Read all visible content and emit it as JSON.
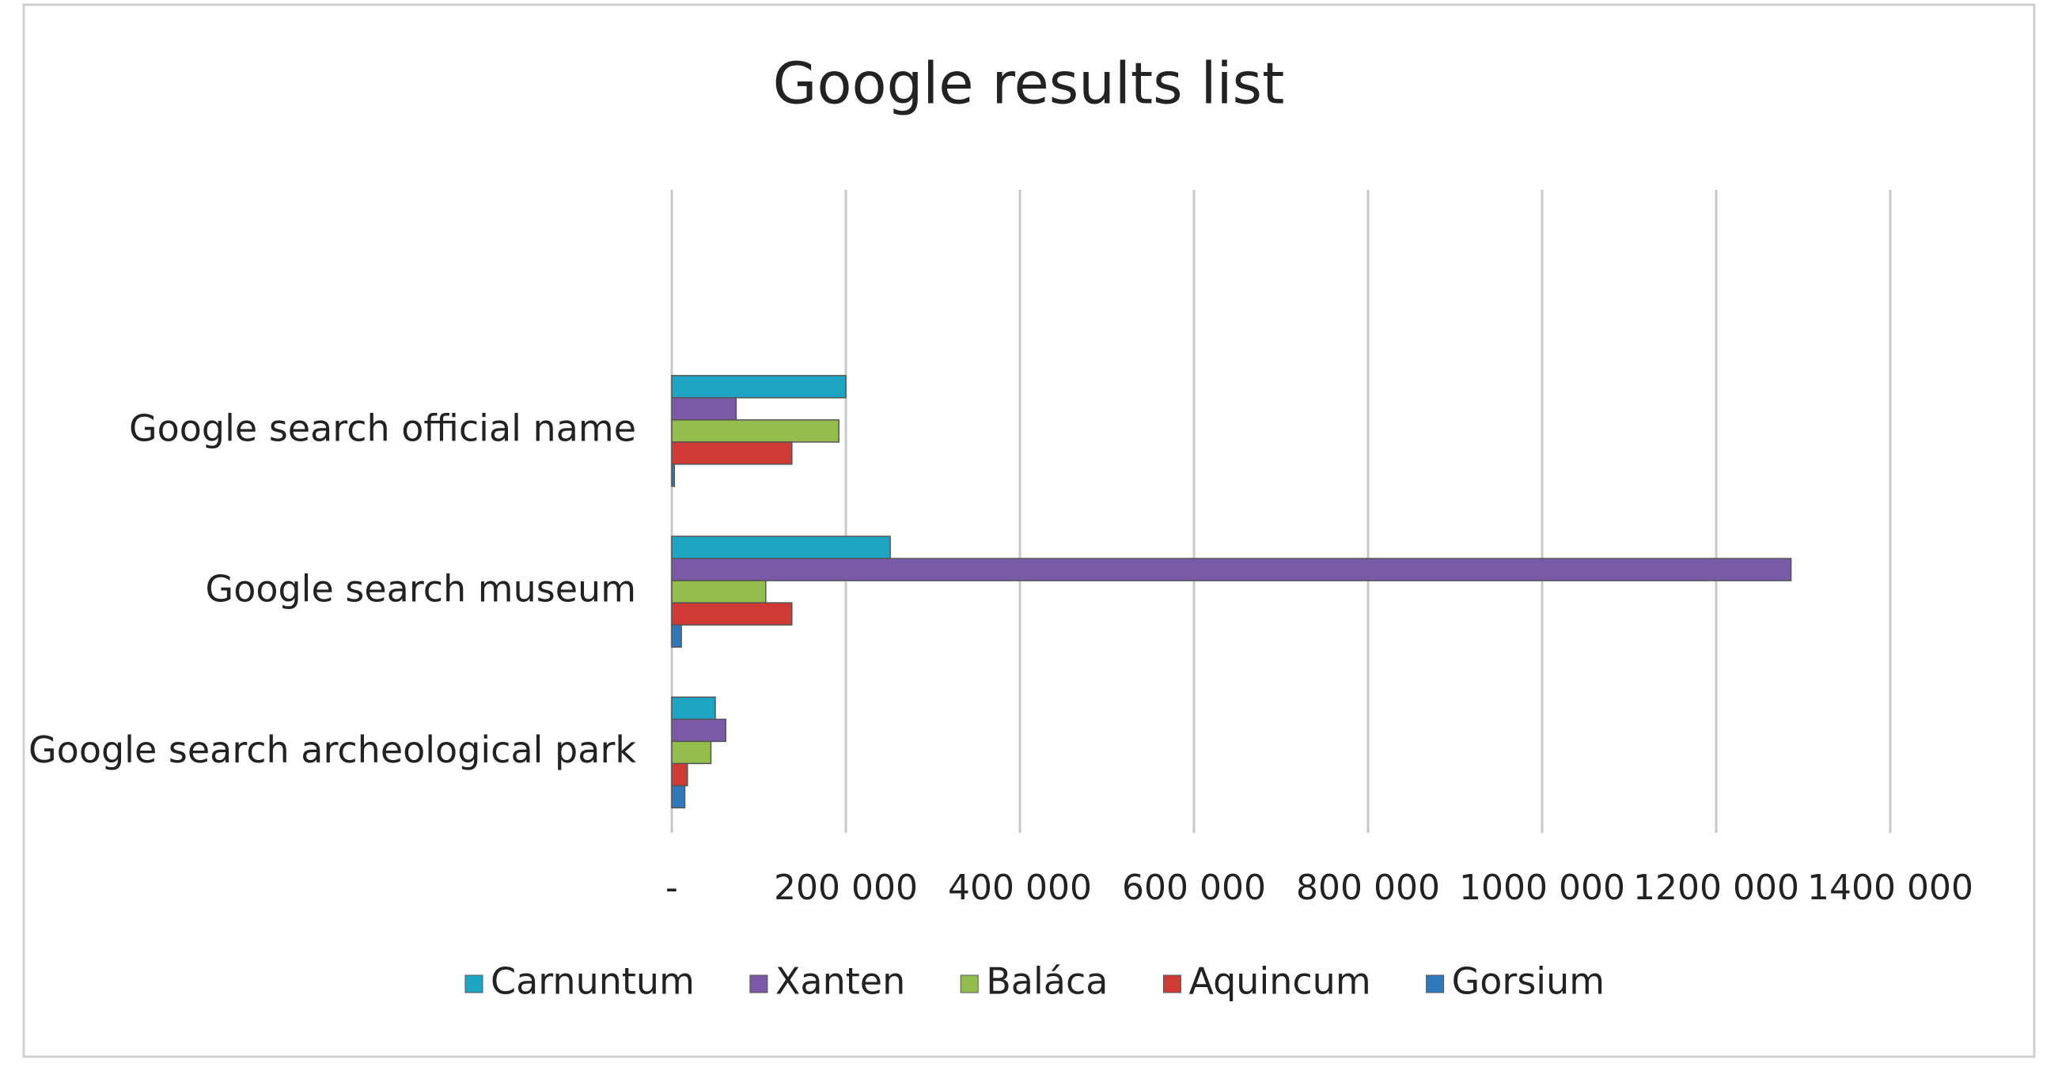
{
  "chart_data": {
    "type": "hbar",
    "title": "Google results list",
    "categories": [
      "Google search archeological park",
      "Google search museum",
      "Google search official name",
      null
    ],
    "series": [
      {
        "name": "Carnuntum",
        "color": "#1ea5c4",
        "values": [
          50000,
          251000,
          200000,
          null
        ]
      },
      {
        "name": "Xanten",
        "color": "#7a5aa6",
        "values": [
          62000,
          1286000,
          74000,
          null
        ]
      },
      {
        "name": "Baláca",
        "color": "#95bd4e",
        "values": [
          45000,
          108000,
          192000,
          null
        ]
      },
      {
        "name": "Aquincum",
        "color": "#cf3a34",
        "values": [
          18000,
          138000,
          138000,
          null
        ]
      },
      {
        "name": "Gorsium",
        "color": "#2f78bb",
        "values": [
          15000,
          11000,
          3000,
          null
        ]
      }
    ],
    "xlim": [
      0,
      1400000
    ],
    "xticks": [
      {
        "value": 0,
        "label": "-"
      },
      {
        "value": 200000,
        "label": "200 000"
      },
      {
        "value": 400000,
        "label": "400 000"
      },
      {
        "value": 600000,
        "label": "600 000"
      },
      {
        "value": 800000,
        "label": "800 000"
      },
      {
        "value": 1000000,
        "label": "1000 000"
      },
      {
        "value": 1200000,
        "label": "1200 000"
      },
      {
        "value": 1400000,
        "label": "1400 000"
      }
    ],
    "grid": true,
    "legend": "bottom"
  }
}
